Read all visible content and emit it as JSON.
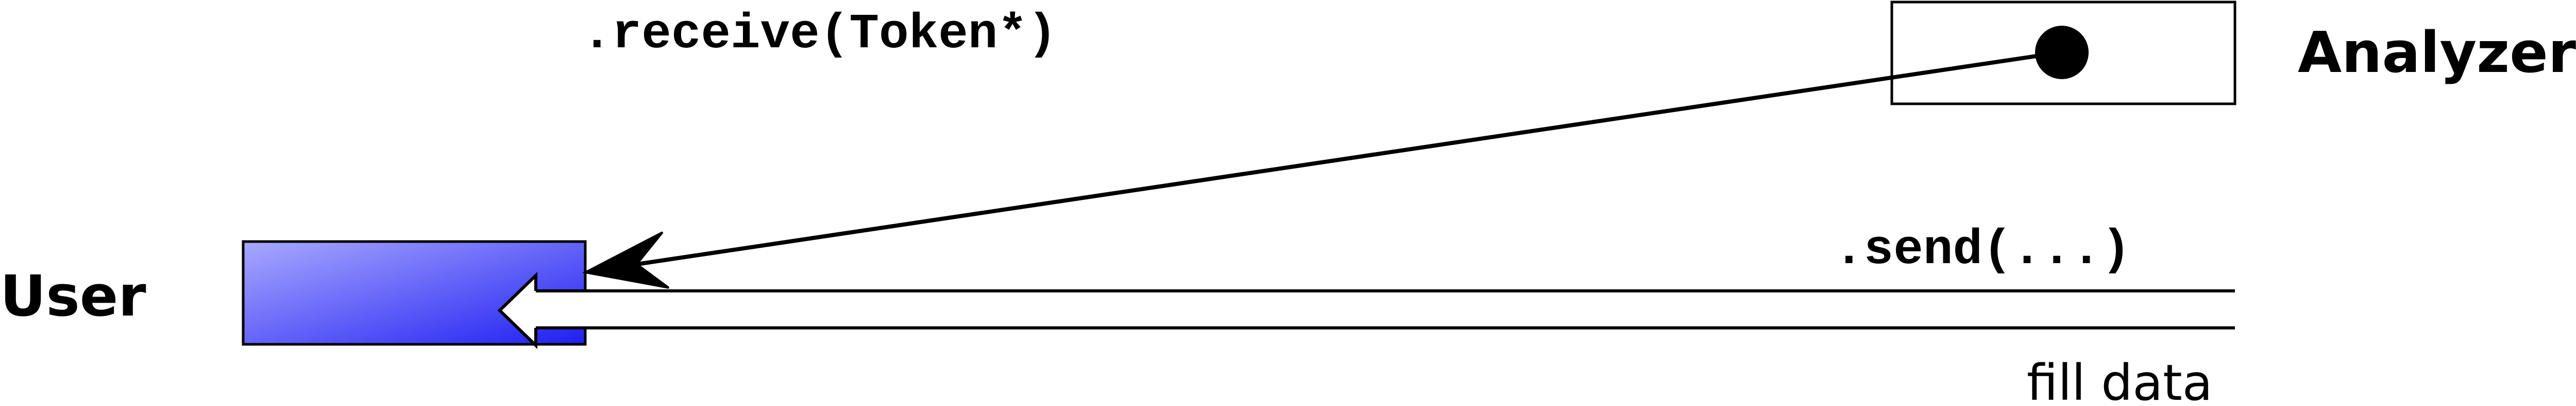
{
  "labels": {
    "user": "User",
    "analyzer": "Analyzer",
    "receive_call": ".receive(Token*)",
    "send_call": ".send(...)",
    "fill_data": "fill data"
  },
  "colors": {
    "user_box_light": "#a9a9ff",
    "user_box_dark": "#1f1ff2",
    "stroke": "#000000",
    "background": "#ffffff"
  }
}
